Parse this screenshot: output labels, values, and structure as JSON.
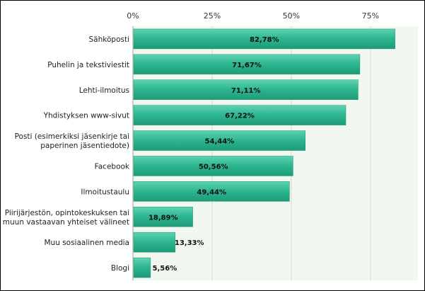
{
  "chart_data": {
    "type": "bar",
    "orientation": "horizontal",
    "title": "",
    "xlabel": "",
    "ylabel": "",
    "xlim": [
      0,
      90
    ],
    "x_ticks": [
      "0%",
      "25%",
      "50%",
      "75%"
    ],
    "x_tick_values": [
      0,
      25,
      50,
      75
    ],
    "grid": true,
    "categories": [
      [
        "Sähköposti"
      ],
      [
        "Puhelin ja tekstiviestit"
      ],
      [
        "Lehti-ilmoitus"
      ],
      [
        "Yhdistyksen www-sivut"
      ],
      [
        "Posti (esimerkiksi jäsenkirje tai",
        "paperinen jäsentiedote)"
      ],
      [
        "Facebook"
      ],
      [
        "Ilmoitustaulu"
      ],
      [
        "Piirijärjestön, opintokeskuksen tai",
        "muun vastaavan yhteiset välineet"
      ],
      [
        "Muu sosiaalinen media"
      ],
      [
        "Blogi"
      ]
    ],
    "values": [
      82.78,
      71.67,
      71.11,
      67.22,
      54.44,
      50.56,
      49.44,
      18.89,
      13.33,
      5.56
    ],
    "value_labels": [
      "82,78%",
      "71,67%",
      "71,11%",
      "67,22%",
      "54,44%",
      "50,56%",
      "49,44%",
      "18,89%",
      "13,33%",
      "5,56%"
    ],
    "colors": {
      "bar": "#2bb58f",
      "bar_light": "#5fd3b1",
      "bar_dark": "#1f9a78",
      "plot_bg": "#f2f7ef",
      "grid": "#d4d9cf",
      "axis": "#9aa296"
    }
  }
}
